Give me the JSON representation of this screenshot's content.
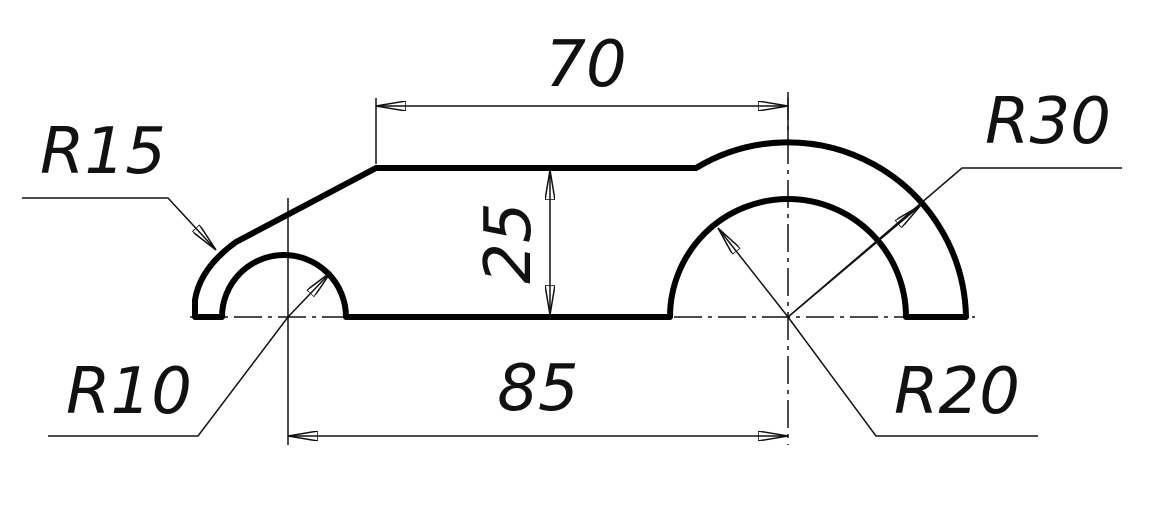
{
  "drawing": {
    "colors": {
      "outline": "#000000",
      "thin": "#111111",
      "background": "#ffffff"
    },
    "dimensions": {
      "top_length": "70",
      "bottom_length": "85",
      "height": "25",
      "r15": "R15",
      "r10": "R10",
      "r30": "R30",
      "r20": "R20"
    }
  }
}
